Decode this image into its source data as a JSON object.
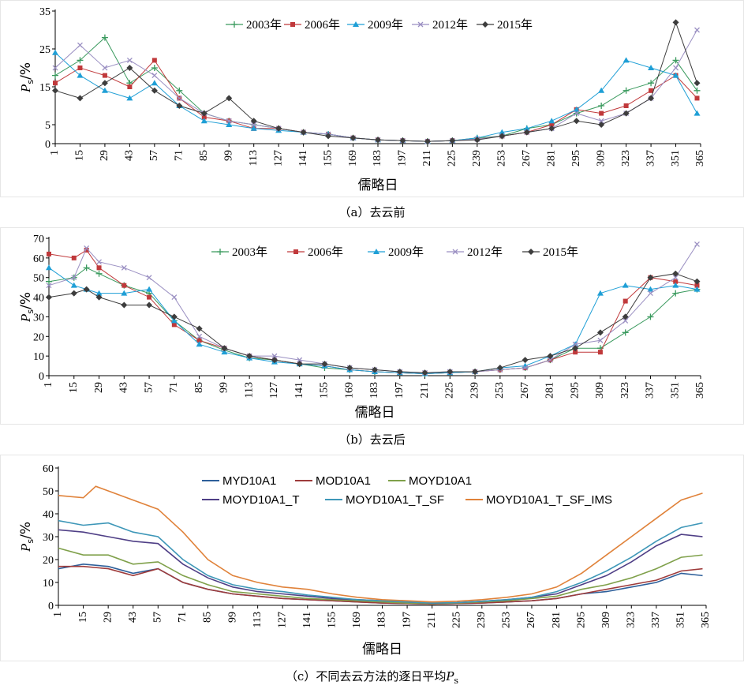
{
  "chart_data": [
    {
      "id": "a",
      "type": "line",
      "caption": "（a）去云前",
      "xlabel": "儒略日",
      "ylabel_main": "P",
      "ylabel_sub": "s",
      "ylabel_unit": "/%",
      "xlim": [
        1,
        365
      ],
      "ylim": [
        0,
        35
      ],
      "xticks": [
        1,
        15,
        29,
        43,
        57,
        71,
        85,
        99,
        113,
        127,
        141,
        155,
        169,
        183,
        197,
        211,
        225,
        239,
        253,
        267,
        281,
        295,
        309,
        323,
        337,
        351,
        365
      ],
      "yticks": [
        0,
        5,
        15,
        25,
        35
      ],
      "legend_position": "top",
      "series": [
        {
          "name": "2003年",
          "color": "#3a9a5e",
          "marker": "plus",
          "x": [
            1,
            15,
            29,
            43,
            57,
            71,
            85,
            99,
            113,
            127,
            141,
            155,
            169,
            183,
            197,
            211,
            225,
            239,
            253,
            267,
            281,
            295,
            309,
            323,
            337,
            351,
            363
          ],
          "y": [
            18,
            22,
            28,
            16,
            20,
            14,
            8,
            6,
            5,
            4,
            3,
            2.5,
            1.5,
            1,
            0.8,
            0.6,
            0.8,
            1.5,
            2,
            4,
            5,
            8,
            10,
            14,
            16,
            22,
            14
          ]
        },
        {
          "name": "2006年",
          "color": "#c0393b",
          "marker": "square",
          "x": [
            1,
            15,
            29,
            43,
            57,
            71,
            85,
            99,
            113,
            127,
            141,
            155,
            169,
            183,
            197,
            211,
            225,
            239,
            253,
            267,
            281,
            295,
            309,
            323,
            337,
            351,
            363
          ],
          "y": [
            16,
            20,
            18,
            15,
            22,
            12,
            7,
            6,
            4,
            4,
            3,
            2.5,
            1.5,
            1,
            0.8,
            0.6,
            0.8,
            1.2,
            2,
            3,
            5,
            9,
            8,
            10,
            14,
            18,
            12
          ]
        },
        {
          "name": "2009年",
          "color": "#1f9fd6",
          "marker": "triangle",
          "x": [
            1,
            15,
            29,
            43,
            57,
            71,
            85,
            99,
            113,
            127,
            141,
            155,
            169,
            183,
            197,
            211,
            225,
            239,
            253,
            267,
            281,
            295,
            309,
            323,
            337,
            351,
            363
          ],
          "y": [
            24,
            18,
            14,
            12,
            16,
            10,
            6,
            5,
            4,
            3.5,
            3,
            2.5,
            1.5,
            1,
            0.8,
            0.6,
            0.8,
            1.5,
            3,
            4,
            6,
            9,
            14,
            22,
            20,
            18,
            8
          ]
        },
        {
          "name": "2012年",
          "color": "#9a8fc2",
          "marker": "x",
          "x": [
            1,
            15,
            29,
            43,
            57,
            71,
            85,
            99,
            113,
            127,
            141,
            155,
            169,
            183,
            197,
            211,
            225,
            239,
            253,
            267,
            281,
            295,
            309,
            323,
            337,
            351,
            363
          ],
          "y": [
            20,
            26,
            20,
            22,
            18,
            12,
            8,
            6,
            5,
            4,
            3,
            2.5,
            1.5,
            1,
            0.8,
            0.6,
            0.8,
            1.2,
            2,
            3,
            4,
            8,
            6,
            8,
            12,
            20,
            30
          ]
        },
        {
          "name": "2015年",
          "color": "#3d3d3d",
          "marker": "diamond",
          "x": [
            1,
            15,
            29,
            43,
            57,
            71,
            85,
            99,
            113,
            127,
            141,
            155,
            169,
            183,
            197,
            211,
            225,
            239,
            253,
            267,
            281,
            295,
            309,
            323,
            337,
            351,
            363
          ],
          "y": [
            14,
            12,
            16,
            20,
            14,
            10,
            8,
            12,
            6,
            4,
            3,
            2,
            1.5,
            1,
            0.8,
            0.6,
            0.8,
            1,
            2,
            3,
            4,
            6,
            5,
            8,
            12,
            32,
            16
          ]
        }
      ]
    },
    {
      "id": "b",
      "type": "line",
      "caption": "（b）去云后",
      "xlabel": "儒略日",
      "ylabel_main": "P",
      "ylabel_sub": "s",
      "ylabel_unit": "/%",
      "xlim": [
        1,
        365
      ],
      "ylim": [
        0,
        70
      ],
      "xticks": [
        1,
        15,
        29,
        43,
        57,
        71,
        85,
        99,
        113,
        127,
        141,
        155,
        169,
        183,
        197,
        211,
        225,
        239,
        253,
        267,
        281,
        295,
        309,
        323,
        337,
        351,
        365
      ],
      "yticks": [
        0,
        10,
        20,
        30,
        40,
        50,
        60,
        70
      ],
      "legend_position": "top",
      "series": [
        {
          "name": "2003年",
          "color": "#3a9a5e",
          "marker": "plus",
          "x": [
            1,
            15,
            22,
            29,
            43,
            57,
            71,
            85,
            99,
            113,
            127,
            141,
            155,
            169,
            183,
            197,
            211,
            225,
            239,
            253,
            267,
            281,
            295,
            309,
            323,
            337,
            351,
            363
          ],
          "y": [
            48,
            50,
            55,
            52,
            46,
            42,
            28,
            18,
            13,
            9,
            8,
            6,
            4,
            3,
            2,
            1.5,
            1,
            1.5,
            2,
            3,
            4,
            8,
            14,
            14,
            22,
            30,
            42,
            44
          ]
        },
        {
          "name": "2006年",
          "color": "#c0393b",
          "marker": "square",
          "x": [
            1,
            15,
            22,
            29,
            43,
            57,
            71,
            85,
            99,
            113,
            127,
            141,
            155,
            169,
            183,
            197,
            211,
            225,
            239,
            253,
            267,
            281,
            295,
            309,
            323,
            337,
            351,
            363
          ],
          "y": [
            62,
            60,
            64,
            55,
            46,
            40,
            26,
            18,
            14,
            10,
            8,
            6,
            5,
            3,
            2,
            1.5,
            1,
            1.5,
            2,
            3,
            4,
            8,
            12,
            12,
            38,
            50,
            48,
            46
          ]
        },
        {
          "name": "2009年",
          "color": "#1f9fd6",
          "marker": "triangle",
          "x": [
            1,
            15,
            22,
            29,
            43,
            57,
            71,
            85,
            99,
            113,
            127,
            141,
            155,
            169,
            183,
            197,
            211,
            225,
            239,
            253,
            267,
            281,
            295,
            309,
            323,
            337,
            351,
            363
          ],
          "y": [
            55,
            46,
            44,
            42,
            42,
            44,
            28,
            16,
            12,
            9,
            7,
            6,
            5,
            3,
            2,
            1.5,
            1,
            1.5,
            2,
            4,
            5,
            10,
            16,
            42,
            46,
            44,
            46,
            44
          ]
        },
        {
          "name": "2012年",
          "color": "#9a8fc2",
          "marker": "x",
          "x": [
            1,
            15,
            22,
            29,
            43,
            57,
            71,
            85,
            99,
            113,
            127,
            141,
            155,
            169,
            183,
            197,
            211,
            225,
            239,
            253,
            267,
            281,
            295,
            309,
            323,
            337,
            351,
            363
          ],
          "y": [
            46,
            50,
            65,
            58,
            55,
            50,
            40,
            20,
            14,
            10,
            10,
            8,
            6,
            4,
            3,
            2,
            1.5,
            2,
            2,
            3,
            4,
            8,
            16,
            18,
            28,
            42,
            50,
            67
          ]
        },
        {
          "name": "2015年",
          "color": "#3d3d3d",
          "marker": "diamond",
          "x": [
            1,
            15,
            22,
            29,
            43,
            57,
            71,
            85,
            99,
            113,
            127,
            141,
            155,
            169,
            183,
            197,
            211,
            225,
            239,
            253,
            267,
            281,
            295,
            309,
            323,
            337,
            351,
            363
          ],
          "y": [
            40,
            42,
            44,
            40,
            36,
            36,
            30,
            24,
            14,
            10,
            8,
            6,
            6,
            4,
            3,
            2,
            1.5,
            2,
            2,
            4,
            8,
            10,
            14,
            22,
            30,
            50,
            52,
            48
          ]
        }
      ]
    },
    {
      "id": "c",
      "type": "line",
      "caption": "（c）不同去云方法的逐日平均",
      "caption_math_main": "P",
      "caption_math_sub": "s",
      "xlabel": "儒略日",
      "ylabel_main": "P",
      "ylabel_sub": "s",
      "ylabel_unit": "/%",
      "xlim": [
        1,
        365
      ],
      "ylim": [
        0,
        60
      ],
      "xticks": [
        1,
        15,
        29,
        43,
        57,
        71,
        85,
        99,
        113,
        127,
        141,
        155,
        169,
        183,
        197,
        211,
        225,
        239,
        253,
        267,
        281,
        295,
        309,
        323,
        337,
        351,
        365
      ],
      "yticks": [
        0,
        10,
        20,
        30,
        40,
        50,
        60
      ],
      "legend_position": "top",
      "series": [
        {
          "name": "MYD10A1",
          "color": "#2d5f9a",
          "x": [
            1,
            15,
            29,
            43,
            57,
            71,
            85,
            99,
            113,
            127,
            141,
            155,
            169,
            183,
            197,
            211,
            225,
            239,
            253,
            267,
            281,
            295,
            309,
            323,
            337,
            351,
            363
          ],
          "y": [
            16,
            18,
            17,
            14,
            16,
            10,
            7,
            5,
            4,
            3,
            2.5,
            2,
            1.5,
            1,
            0.8,
            0.6,
            0.8,
            1,
            1.5,
            2,
            3,
            5,
            6,
            8,
            10,
            14,
            13
          ]
        },
        {
          "name": "MOD10A1",
          "color": "#9e3b3b",
          "x": [
            1,
            15,
            29,
            43,
            57,
            71,
            85,
            99,
            113,
            127,
            141,
            155,
            169,
            183,
            197,
            211,
            225,
            239,
            253,
            267,
            281,
            295,
            309,
            323,
            337,
            351,
            363
          ],
          "y": [
            17,
            17,
            16,
            13,
            16,
            10,
            7,
            5,
            4,
            3,
            2.5,
            2,
            1.5,
            1,
            0.8,
            0.6,
            0.8,
            1,
            1.5,
            2,
            3,
            5,
            7,
            9,
            11,
            15,
            16
          ]
        },
        {
          "name": "MOYD10A1",
          "color": "#7fa04a",
          "x": [
            1,
            15,
            29,
            43,
            57,
            71,
            85,
            99,
            113,
            127,
            141,
            155,
            169,
            183,
            197,
            211,
            225,
            239,
            253,
            267,
            281,
            295,
            309,
            323,
            337,
            351,
            363
          ],
          "y": [
            25,
            22,
            22,
            18,
            19,
            13,
            9,
            6,
            5,
            4,
            3,
            2.5,
            2,
            1.5,
            1,
            0.8,
            1,
            1.5,
            2,
            3,
            4,
            7,
            9,
            12,
            16,
            21,
            22
          ]
        },
        {
          "name": "MOYD10A1_T",
          "color": "#4f3f86",
          "x": [
            1,
            15,
            29,
            43,
            57,
            71,
            85,
            99,
            113,
            127,
            141,
            155,
            169,
            183,
            197,
            211,
            225,
            239,
            253,
            267,
            281,
            295,
            309,
            323,
            337,
            351,
            363
          ],
          "y": [
            33,
            32,
            30,
            28,
            27,
            18,
            12,
            8,
            6,
            5,
            4,
            3,
            2.5,
            2,
            1.5,
            1,
            1.2,
            1.8,
            2.5,
            3.5,
            5,
            9,
            13,
            19,
            26,
            31,
            30
          ]
        },
        {
          "name": "MOYD10A1_T_SF",
          "color": "#3e97b8",
          "x": [
            1,
            15,
            29,
            43,
            57,
            71,
            85,
            99,
            113,
            127,
            141,
            155,
            169,
            183,
            197,
            211,
            225,
            239,
            253,
            267,
            281,
            295,
            309,
            323,
            337,
            351,
            363
          ],
          "y": [
            37,
            35,
            36,
            32,
            30,
            20,
            13,
            9,
            7,
            6,
            4.5,
            3.5,
            2.5,
            2,
            1.5,
            1,
            1.2,
            1.8,
            2.5,
            3.5,
            6,
            10,
            15,
            21,
            28,
            34,
            36
          ]
        },
        {
          "name": "MOYD10A1_T_SF_IMS",
          "color": "#e0823a",
          "x": [
            1,
            15,
            22,
            29,
            43,
            57,
            71,
            85,
            99,
            113,
            127,
            141,
            155,
            169,
            183,
            197,
            211,
            225,
            239,
            253,
            267,
            281,
            295,
            309,
            323,
            337,
            351,
            363
          ],
          "y": [
            48,
            47,
            52,
            50,
            46,
            42,
            32,
            20,
            13,
            10,
            8,
            7,
            5,
            3.5,
            2.5,
            2,
            1.5,
            1.8,
            2.5,
            3.5,
            5,
            8,
            14,
            22,
            30,
            38,
            46,
            49
          ]
        }
      ]
    }
  ]
}
